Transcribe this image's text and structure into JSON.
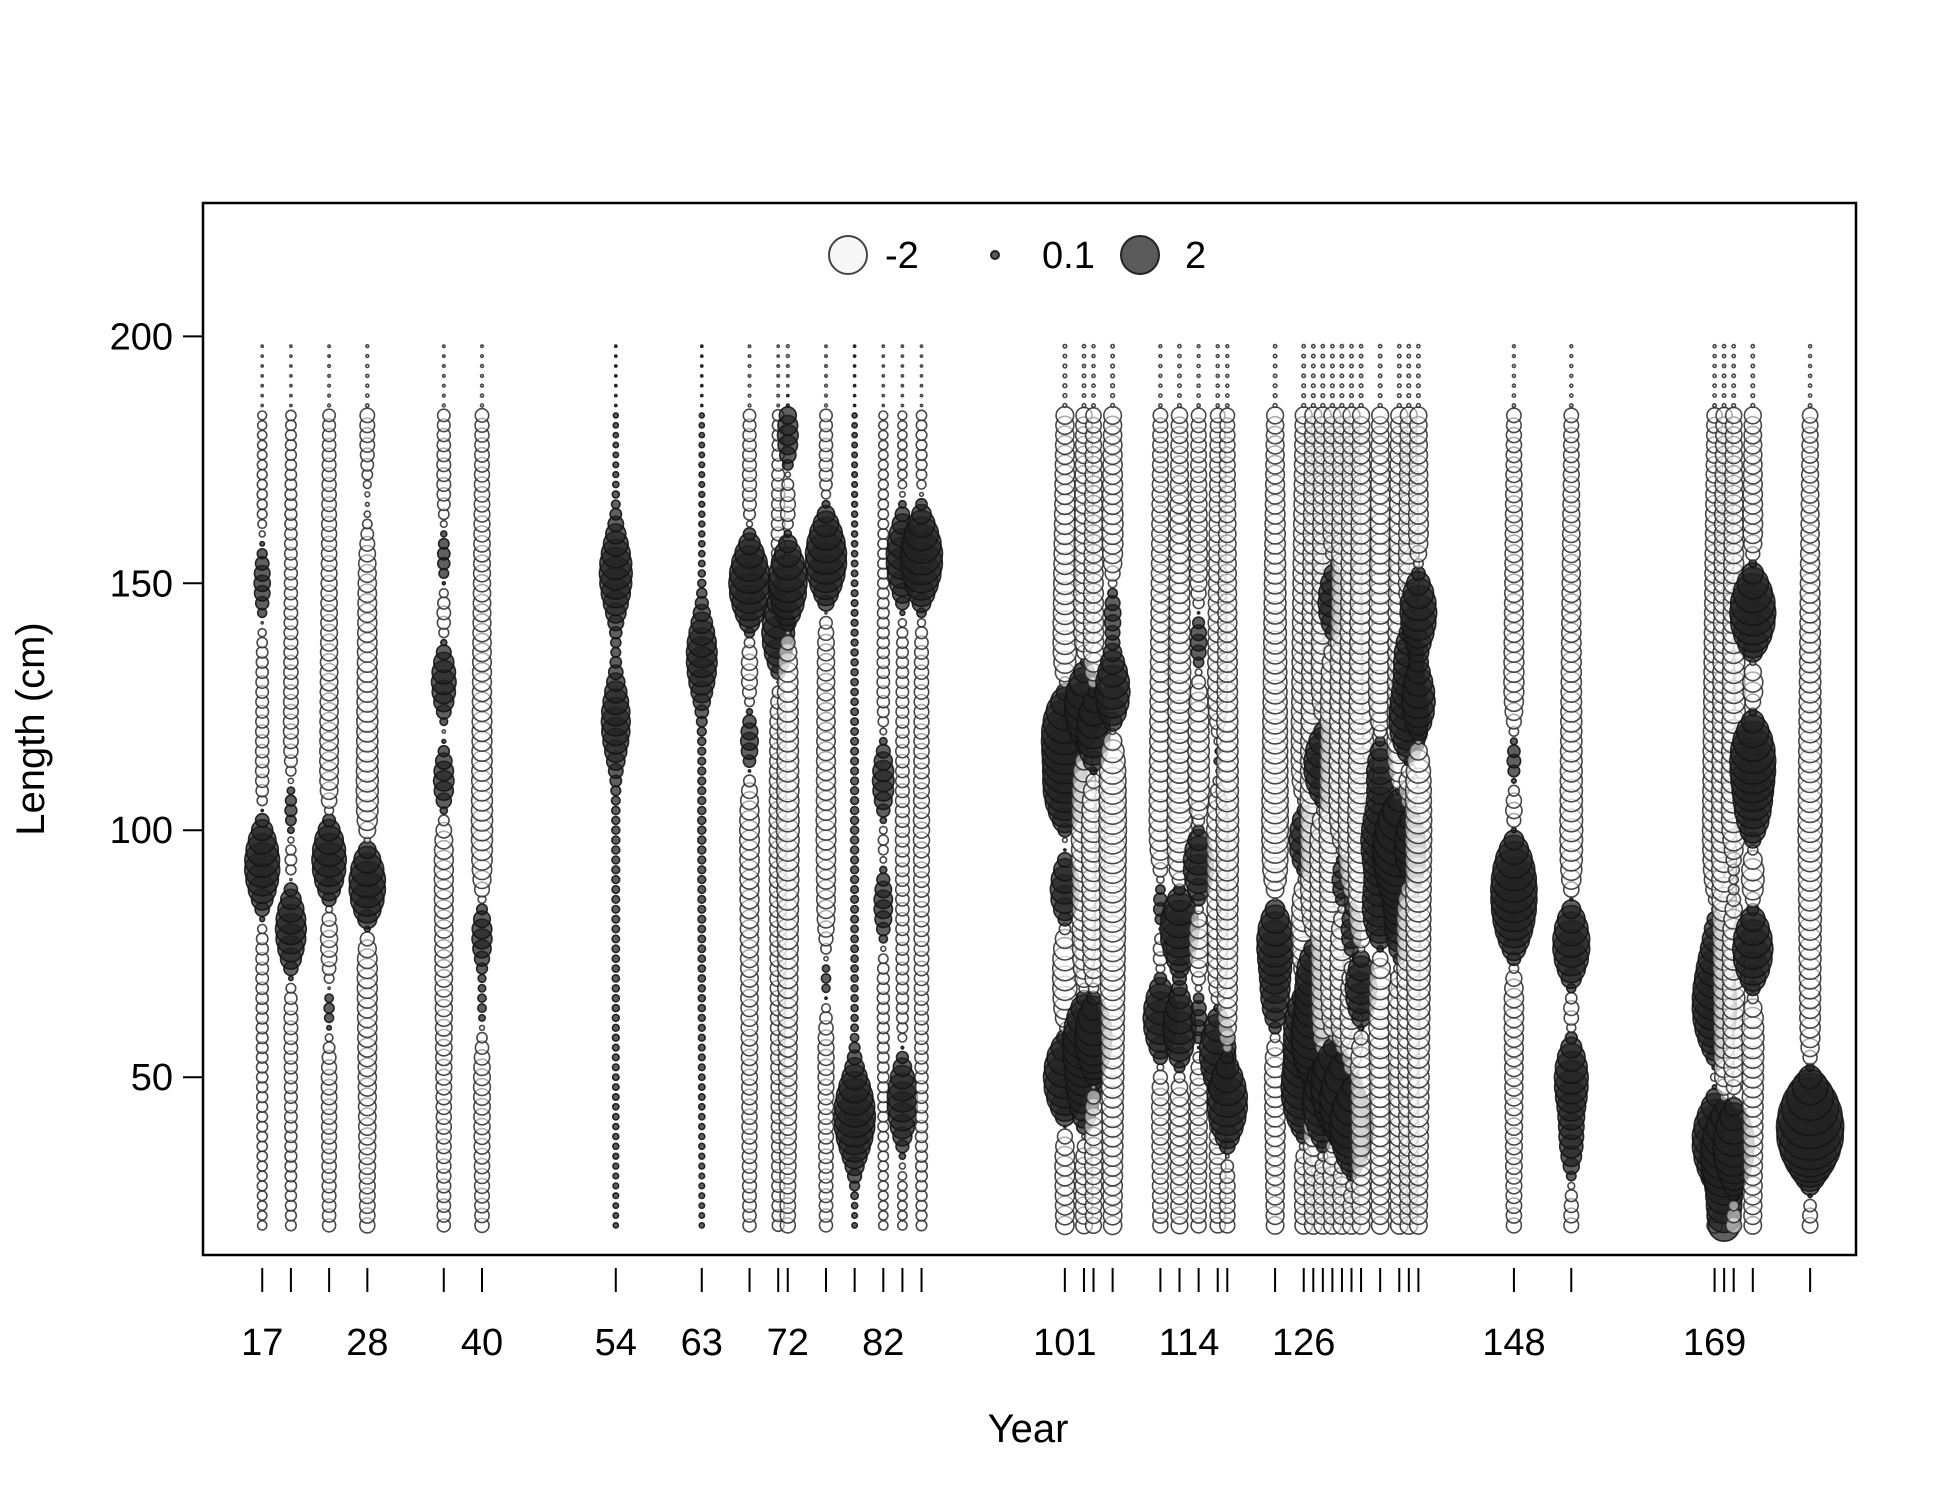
{
  "chart_data": {
    "type": "scatter",
    "subtype": "bubble-residuals",
    "xlabel": "Year",
    "ylabel": "Length (cm)",
    "xlim": [
      10.8,
      183.8
    ],
    "ylim": [
      14,
      227
    ],
    "yticks": [
      50,
      100,
      150,
      200
    ],
    "x_tick_positions": [
      17,
      20,
      24,
      28,
      36,
      40,
      54,
      63,
      68,
      71,
      72,
      76,
      79,
      82,
      84,
      86,
      101,
      103,
      104,
      106,
      111,
      113,
      115,
      117,
      118,
      123,
      126,
      127,
      128,
      129,
      130,
      131,
      132,
      134,
      136,
      137,
      138,
      148,
      154,
      169,
      170,
      171,
      173,
      179
    ],
    "x_tick_labels": [
      "17",
      "28",
      "40",
      "54",
      "63",
      "72",
      "82",
      "101",
      "114",
      "126",
      "148",
      "169"
    ],
    "x_tick_label_values": [
      17,
      28,
      40,
      54,
      63,
      72,
      82,
      101,
      114,
      126,
      148,
      169
    ],
    "grid": false,
    "legend": {
      "placement": "top-center",
      "entries": [
        {
          "label": "-2",
          "value": -2,
          "fill": "#ffffff"
        },
        {
          "label": "0.1",
          "value": 0.1,
          "fill": "#333333"
        },
        {
          "label": "2",
          "value": 2,
          "fill": "#333333"
        }
      ]
    },
    "bin_width": 2,
    "length_range": [
      20,
      198
    ],
    "series_note": "residual magnitude by year and length; positive = filled, negative = open",
    "years": [
      {
        "x": 17,
        "y_range": [
          20,
          198
        ],
        "base": -0.15,
        "peaks": [
          {
            "y": 93,
            "v": 1.1
          },
          {
            "y": 150,
            "v": 0.3
          }
        ]
      },
      {
        "x": 20,
        "y_range": [
          20,
          198
        ],
        "base": -0.2,
        "peaks": [
          {
            "y": 80,
            "v": 0.9
          },
          {
            "y": 104,
            "v": 0.3
          }
        ]
      },
      {
        "x": 24,
        "y_range": [
          20,
          198
        ],
        "base": -0.3,
        "peaks": [
          {
            "y": 94,
            "v": 1.2
          },
          {
            "y": 64,
            "v": 0.3
          }
        ]
      },
      {
        "x": 28,
        "y_range": [
          20,
          198
        ],
        "base": -0.4,
        "peaks": [
          {
            "y": 89,
            "v": 1.4
          },
          {
            "y": 166,
            "v": 0.2
          }
        ]
      },
      {
        "x": 36,
        "y_range": [
          20,
          198
        ],
        "base": -0.3,
        "peaks": [
          {
            "y": 130,
            "v": 0.7
          },
          {
            "y": 110,
            "v": 0.6
          },
          {
            "y": 155,
            "v": 0.3
          }
        ]
      },
      {
        "x": 40,
        "y_range": [
          20,
          198
        ],
        "base": -0.35,
        "peaks": [
          {
            "y": 79,
            "v": 0.6
          },
          {
            "y": 64,
            "v": 0.3
          }
        ]
      },
      {
        "x": 54,
        "y_range": [
          20,
          198
        ],
        "base": 0.05,
        "peaks": [
          {
            "y": 152,
            "v": 0.8
          },
          {
            "y": 122,
            "v": 0.6
          }
        ]
      },
      {
        "x": 63,
        "y_range": [
          20,
          198
        ],
        "base": 0.05,
        "peaks": [
          {
            "y": 135,
            "v": 0.7
          }
        ]
      },
      {
        "x": 68,
        "y_range": [
          20,
          198
        ],
        "base": -0.3,
        "peaks": [
          {
            "y": 150,
            "v": 1.5
          },
          {
            "y": 118,
            "v": 0.5
          }
        ]
      },
      {
        "x": 71,
        "y_range": [
          20,
          198
        ],
        "base": -0.25,
        "peaks": [
          {
            "y": 140,
            "v": 1.0
          }
        ]
      },
      {
        "x": 72,
        "y_range": [
          20,
          198
        ],
        "base": -0.4,
        "peaks": [
          {
            "y": 150,
            "v": 1.4
          },
          {
            "y": 180,
            "v": 0.5
          }
        ]
      },
      {
        "x": 76,
        "y_range": [
          20,
          198
        ],
        "base": -0.3,
        "peaks": [
          {
            "y": 155,
            "v": 1.5
          },
          {
            "y": 70,
            "v": 0.3
          }
        ]
      },
      {
        "x": 79,
        "y_range": [
          20,
          198
        ],
        "base": 0.05,
        "peaks": [
          {
            "y": 42,
            "v": 1.3
          }
        ]
      },
      {
        "x": 82,
        "y_range": [
          20,
          198
        ],
        "base": -0.15,
        "peaks": [
          {
            "y": 110,
            "v": 0.5
          },
          {
            "y": 85,
            "v": 0.4
          }
        ]
      },
      {
        "x": 84,
        "y_range": [
          20,
          198
        ],
        "base": -0.15,
        "peaks": [
          {
            "y": 155,
            "v": 0.9
          },
          {
            "y": 45,
            "v": 0.8
          }
        ]
      },
      {
        "x": 86,
        "y_range": [
          20,
          198
        ],
        "base": -0.2,
        "peaks": [
          {
            "y": 155,
            "v": 1.5
          }
        ]
      },
      {
        "x": 101,
        "y_range": [
          20,
          198
        ],
        "base": -0.6,
        "peaks": [
          {
            "y": 120,
            "v": 2.0
          },
          {
            "y": 108,
            "v": 1.8
          },
          {
            "y": 50,
            "v": 1.8
          },
          {
            "y": 88,
            "v": 1.2
          }
        ]
      },
      {
        "x": 103,
        "y_range": [
          20,
          198
        ],
        "base": -0.5,
        "peaks": [
          {
            "y": 125,
            "v": 1.6
          },
          {
            "y": 58,
            "v": 1.6
          },
          {
            "y": 47,
            "v": 1.0
          }
        ]
      },
      {
        "x": 104,
        "y_range": [
          20,
          198
        ],
        "base": -0.45,
        "peaks": [
          {
            "y": 120,
            "v": 1.3
          },
          {
            "y": 58,
            "v": 1.4
          }
        ]
      },
      {
        "x": 106,
        "y_range": [
          20,
          198
        ],
        "base": -0.6,
        "peaks": [
          {
            "y": 128,
            "v": 1.4
          },
          {
            "y": 144,
            "v": 0.6
          }
        ]
      },
      {
        "x": 111,
        "y_range": [
          20,
          198
        ],
        "base": -0.4,
        "peaks": [
          {
            "y": 62,
            "v": 1.2
          },
          {
            "y": 85,
            "v": 0.5
          }
        ]
      },
      {
        "x": 113,
        "y_range": [
          20,
          198
        ],
        "base": -0.5,
        "peaks": [
          {
            "y": 80,
            "v": 1.6
          },
          {
            "y": 60,
            "v": 1.2
          }
        ]
      },
      {
        "x": 115,
        "y_range": [
          20,
          198
        ],
        "base": -0.4,
        "peaks": [
          {
            "y": 93,
            "v": 1.1
          },
          {
            "y": 138,
            "v": 0.5
          },
          {
            "y": 62,
            "v": 0.5
          }
        ]
      },
      {
        "x": 117,
        "y_range": [
          20,
          198
        ],
        "base": -0.4,
        "peaks": [
          {
            "y": 55,
            "v": 1.3
          },
          {
            "y": 114,
            "v": 0.4
          }
        ]
      },
      {
        "x": 118,
        "y_range": [
          20,
          198
        ],
        "base": -0.4,
        "peaks": [
          {
            "y": 45,
            "v": 1.5
          }
        ]
      },
      {
        "x": 123,
        "y_range": [
          20,
          198
        ],
        "base": -0.55,
        "peaks": [
          {
            "y": 78,
            "v": 1.4
          },
          {
            "y": 66,
            "v": 0.9
          }
        ]
      },
      {
        "x": 126,
        "y_range": [
          20,
          198
        ],
        "base": -0.55,
        "peaks": [
          {
            "y": 47,
            "v": 1.8
          },
          {
            "y": 98,
            "v": 1.2
          },
          {
            "y": 60,
            "v": 1.5
          }
        ]
      },
      {
        "x": 127,
        "y_range": [
          20,
          198
        ],
        "base": -0.55,
        "peaks": [
          {
            "y": 57,
            "v": 1.8
          },
          {
            "y": 70,
            "v": 1.3
          }
        ]
      },
      {
        "x": 128,
        "y_range": [
          20,
          198
        ],
        "base": -0.55,
        "peaks": [
          {
            "y": 113,
            "v": 1.6
          },
          {
            "y": 45,
            "v": 1.6
          }
        ]
      },
      {
        "x": 129,
        "y_range": [
          20,
          198
        ],
        "base": -0.55,
        "peaks": [
          {
            "y": 146,
            "v": 1.0
          },
          {
            "y": 48,
            "v": 1.8
          }
        ]
      },
      {
        "x": 130,
        "y_range": [
          20,
          198
        ],
        "base": -0.55,
        "peaks": [
          {
            "y": 45,
            "v": 1.9
          },
          {
            "y": 90,
            "v": 0.8
          }
        ]
      },
      {
        "x": 131,
        "y_range": [
          20,
          198
        ],
        "base": -0.55,
        "peaks": [
          {
            "y": 40,
            "v": 1.8
          },
          {
            "y": 80,
            "v": 0.8
          }
        ]
      },
      {
        "x": 132,
        "y_range": [
          20,
          198
        ],
        "base": -0.55,
        "peaks": [
          {
            "y": 68,
            "v": 1.2
          }
        ]
      },
      {
        "x": 134,
        "y_range": [
          20,
          198
        ],
        "base": -0.55,
        "peaks": [
          {
            "y": 98,
            "v": 1.6
          },
          {
            "y": 84,
            "v": 1.4
          },
          {
            "y": 112,
            "v": 1.0
          }
        ]
      },
      {
        "x": 136,
        "y_range": [
          20,
          198
        ],
        "base": -0.55,
        "peaks": [
          {
            "y": 93,
            "v": 1.8
          },
          {
            "y": 100,
            "v": 1.5
          },
          {
            "y": 80,
            "v": 1.0
          }
        ]
      },
      {
        "x": 137,
        "y_range": [
          20,
          198
        ],
        "base": -0.55,
        "peaks": [
          {
            "y": 122,
            "v": 1.6
          },
          {
            "y": 97,
            "v": 1.2
          },
          {
            "y": 135,
            "v": 1.0
          }
        ]
      },
      {
        "x": 138,
        "y_range": [
          20,
          198
        ],
        "base": -0.55,
        "peaks": [
          {
            "y": 144,
            "v": 1.4
          },
          {
            "y": 126,
            "v": 1.3
          }
        ]
      },
      {
        "x": 148,
        "y_range": [
          20,
          198
        ],
        "base": -0.4,
        "peaks": [
          {
            "y": 91,
            "v": 1.5
          },
          {
            "y": 82,
            "v": 1.3
          },
          {
            "y": 114,
            "v": 0.5
          }
        ]
      },
      {
        "x": 154,
        "y_range": [
          20,
          198
        ],
        "base": -0.4,
        "peaks": [
          {
            "y": 77,
            "v": 1.4
          },
          {
            "y": 50,
            "v": 1.1
          },
          {
            "y": 37,
            "v": 0.6
          }
        ]
      },
      {
        "x": 169,
        "y_range": [
          20,
          198
        ],
        "base": -0.45,
        "peaks": [
          {
            "y": 62,
            "v": 1.4
          },
          {
            "y": 37,
            "v": 1.8
          },
          {
            "y": 70,
            "v": 1.0
          },
          {
            "y": 80,
            "v": 0.5
          }
        ]
      },
      {
        "x": 170,
        "y_range": [
          20,
          198
        ],
        "base": -0.5,
        "peaks": [
          {
            "y": 35,
            "v": 1.9
          },
          {
            "y": 22,
            "v": 1.0
          }
        ]
      },
      {
        "x": 171,
        "y_range": [
          20,
          198
        ],
        "base": -0.5,
        "peaks": [
          {
            "y": 36,
            "v": 1.6
          },
          {
            "y": 90,
            "v": 0.4
          }
        ]
      },
      {
        "x": 173,
        "y_range": [
          20,
          198
        ],
        "base": -0.55,
        "peaks": [
          {
            "y": 144,
            "v": 2.0
          },
          {
            "y": 115,
            "v": 1.9
          },
          {
            "y": 76,
            "v": 1.7
          },
          {
            "y": 104,
            "v": 1.3
          }
        ]
      },
      {
        "x": 179,
        "y_range": [
          20,
          198
        ],
        "base": -0.45,
        "peaks": [
          {
            "y": 41,
            "v": 2.0
          },
          {
            "y": 38,
            "v": 1.9
          }
        ]
      }
    ]
  }
}
